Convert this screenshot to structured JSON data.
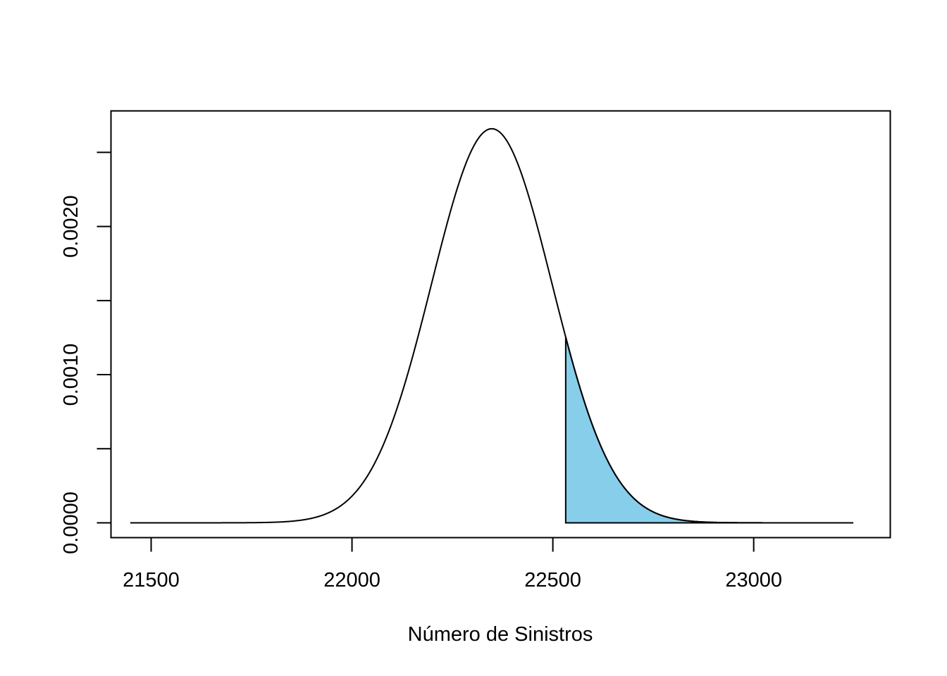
{
  "chart_data": {
    "type": "line",
    "title": "",
    "xlabel": "Número de Sinistros",
    "ylabel": "",
    "xlim": [
      21400,
      23340
    ],
    "ylim": [
      -0.0001,
      0.00278
    ],
    "x_ticks": [
      21500,
      22000,
      22500,
      23000
    ],
    "x_tick_labels": [
      "21500",
      "22000",
      "22500",
      "23000"
    ],
    "y_ticks": [
      0.0,
      0.0005,
      0.001,
      0.0015,
      0.002,
      0.0025
    ],
    "y_tick_labels": [
      "0.0000",
      "",
      "0.0010",
      "",
      "0.0020",
      ""
    ],
    "grid": false,
    "series": [
      {
        "curve": "normal density",
        "mean": 22348,
        "sd": 150,
        "x_range": [
          21448,
          23248
        ],
        "line_color": "#000000"
      }
    ],
    "shaded_region": {
      "x_from": 22532,
      "x_to": 23248,
      "fill_color": "#87CEEB"
    }
  }
}
